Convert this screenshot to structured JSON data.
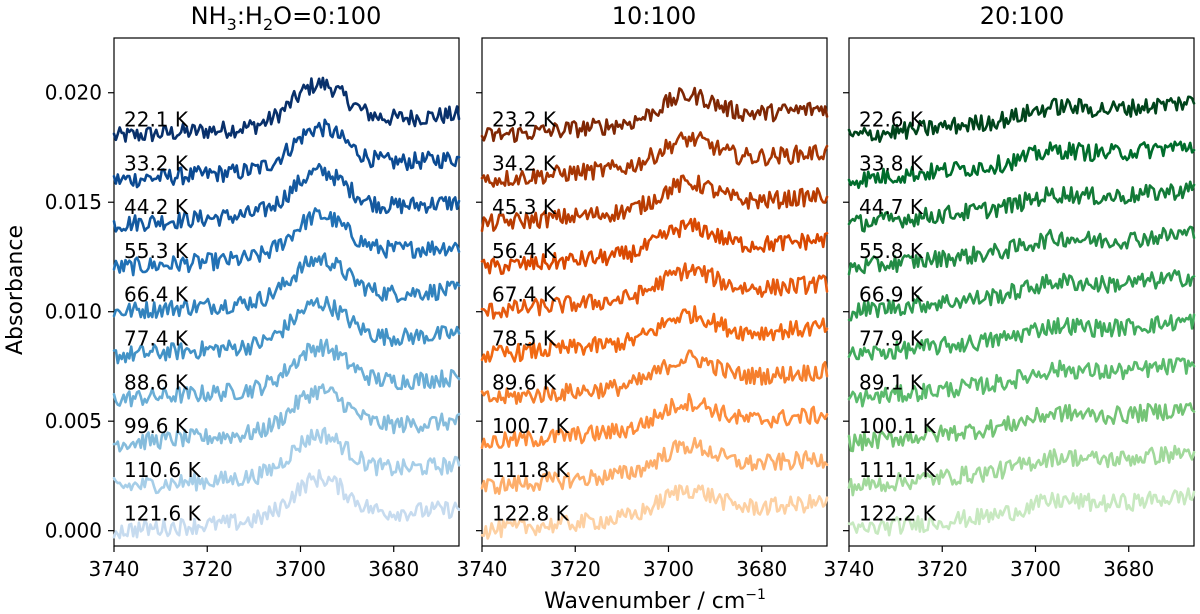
{
  "chart_data": {
    "type": "line",
    "ylabel": "Absorbance",
    "xlabel": "Wavenumber / cm",
    "xlabel_superscript": "−1",
    "xlim": [
      3740,
      3666
    ],
    "ylim": [
      -0.0007,
      0.0225
    ],
    "yticks": [
      0.0,
      0.005,
      0.01,
      0.015,
      0.02
    ],
    "ytick_labels": [
      "0.000",
      "0.005",
      "0.010",
      "0.015",
      "0.020"
    ],
    "xticks": [
      3740,
      3720,
      3700,
      3680
    ],
    "xtick_labels": [
      "3740",
      "3720",
      "3700",
      "3680"
    ],
    "offsets": [
      0.018,
      0.016,
      0.014,
      0.012,
      0.01,
      0.008,
      0.006,
      0.004,
      0.002,
      0.0
    ],
    "panels": [
      {
        "title_prefix": "NH",
        "title_sub1": "3",
        "title_mid": ":H",
        "title_sub2": "2",
        "title_suffix": "O=0:100",
        "colors": [
          "#08306b",
          "#0b4a92",
          "#14599f",
          "#2171b5",
          "#3182bd",
          "#4292c6",
          "#6baed6",
          "#85bcdc",
          "#a6cee8",
          "#c6dbef"
        ],
        "bump_amp": 0.0018,
        "slope": 0.001,
        "series": [
          {
            "label": "22.1 K"
          },
          {
            "label": "33.2 K"
          },
          {
            "label": "44.2 K"
          },
          {
            "label": "55.3 K"
          },
          {
            "label": "66.4 K"
          },
          {
            "label": "77.4 K"
          },
          {
            "label": "88.6 K"
          },
          {
            "label": "99.6 K"
          },
          {
            "label": "110.6 K"
          },
          {
            "label": "121.6 K"
          }
        ]
      },
      {
        "title": "10:100",
        "colors": [
          "#7f2704",
          "#a63603",
          "#b83c02",
          "#d94801",
          "#e55a0f",
          "#f16913",
          "#f57f2d",
          "#fd8d3c",
          "#fdae6b",
          "#fdd0a2"
        ],
        "bump_amp": 0.0011,
        "slope": 0.0013,
        "series": [
          {
            "label": "23.2 K"
          },
          {
            "label": "34.2 K"
          },
          {
            "label": "45.3 K"
          },
          {
            "label": "56.4 K"
          },
          {
            "label": "67.4 K"
          },
          {
            "label": "78.5 K"
          },
          {
            "label": "89.6 K"
          },
          {
            "label": "100.7 K"
          },
          {
            "label": "111.8 K"
          },
          {
            "label": "122.8 K"
          }
        ]
      },
      {
        "title": "20:100",
        "colors": [
          "#00441b",
          "#006d2c",
          "#137a37",
          "#238b45",
          "#2f9a50",
          "#41ab5d",
          "#5bbb6d",
          "#74c476",
          "#a1d99b",
          "#c7e9c0"
        ],
        "bump_amp": 0.0004,
        "slope": 0.0016,
        "series": [
          {
            "label": "22.6 K"
          },
          {
            "label": "33.8 K"
          },
          {
            "label": "44.7 K"
          },
          {
            "label": "55.8 K"
          },
          {
            "label": "66.9 K"
          },
          {
            "label": "77.9 K"
          },
          {
            "label": "89.1 K"
          },
          {
            "label": "100.1 K"
          },
          {
            "label": "111.1 K"
          },
          {
            "label": "122.2 K"
          }
        ]
      }
    ]
  }
}
